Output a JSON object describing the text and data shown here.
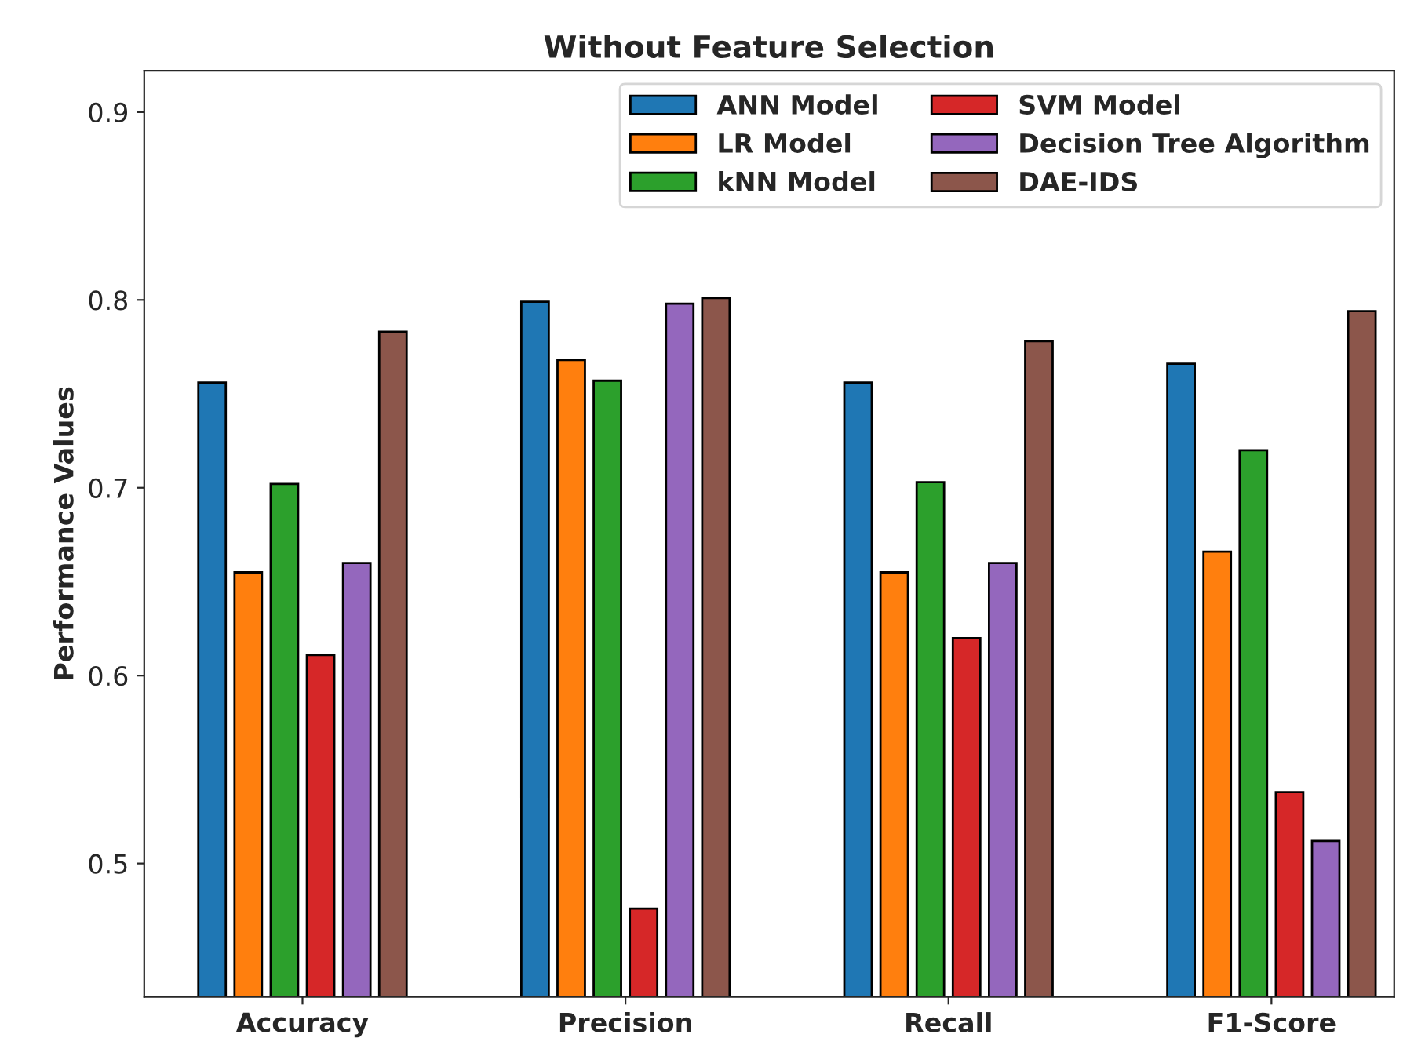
{
  "chart_data": {
    "type": "bar",
    "title": "Without Feature Selection",
    "ylabel": "Performance Values",
    "categories": [
      "Accuracy",
      "Precision",
      "Recall",
      "F1-Score"
    ],
    "series": [
      {
        "name": "ANN Model",
        "color": "#1f77b4",
        "values": [
          0.756,
          0.799,
          0.756,
          0.766
        ]
      },
      {
        "name": "LR Model",
        "color": "#ff7f0e",
        "values": [
          0.655,
          0.768,
          0.655,
          0.666
        ]
      },
      {
        "name": "kNN Model",
        "color": "#2ca02c",
        "values": [
          0.702,
          0.757,
          0.703,
          0.72
        ]
      },
      {
        "name": "SVM Model",
        "color": "#d62728",
        "values": [
          0.611,
          0.476,
          0.62,
          0.538
        ]
      },
      {
        "name": "Decision Tree Algorithm",
        "color": "#9467bd",
        "values": [
          0.66,
          0.798,
          0.66,
          0.512
        ]
      },
      {
        "name": "DAE-IDS",
        "color": "#8c564b",
        "values": [
          0.783,
          0.801,
          0.778,
          0.794
        ]
      }
    ],
    "ylim": [
      0.429,
      0.922
    ],
    "yticks": [
      0.5,
      0.6,
      0.7,
      0.8,
      0.9
    ],
    "grid": false,
    "legend": "top right"
  }
}
